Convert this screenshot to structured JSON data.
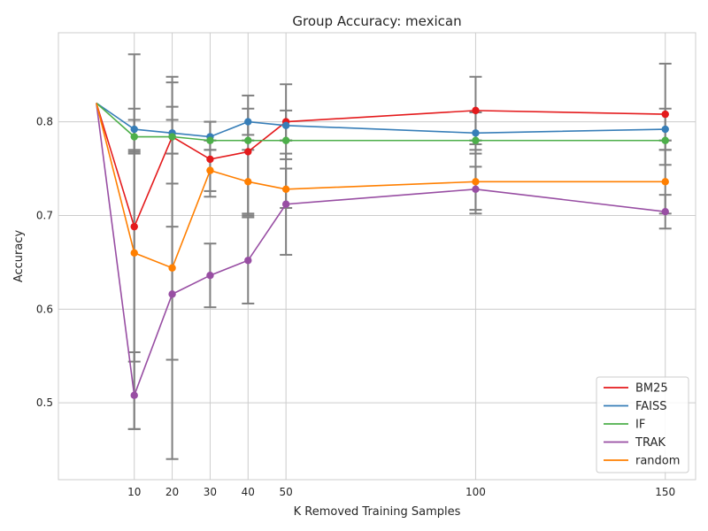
{
  "chart_data": {
    "type": "line",
    "title": "Group Accuracy: mexican",
    "xlabel": "K Removed Training Samples",
    "ylabel": "Accuracy",
    "xlim": [
      -10,
      158
    ],
    "ylim": [
      0.418,
      0.895
    ],
    "xticks": [
      10,
      20,
      30,
      40,
      50,
      100,
      150
    ],
    "yticks": [
      0.5,
      0.6,
      0.7,
      0.8
    ],
    "ytick_labels": [
      "0.5",
      "0.6",
      "0.7",
      "0.8"
    ],
    "grid": true,
    "legend_position": "lower-right",
    "error_bar_color": "#808080",
    "series": [
      {
        "name": "BM25",
        "color": "#e41a1c",
        "x": [
          0,
          10,
          20,
          30,
          40,
          50,
          100,
          150
        ],
        "y": [
          0.82,
          0.688,
          0.784,
          0.76,
          0.768,
          0.8,
          0.812,
          0.808
        ],
        "err": [
          null,
          [
            0.472,
            0.872
          ],
          [
            0.734,
            0.842
          ],
          [
            0.72,
            0.8
          ],
          [
            0.7,
            0.828
          ],
          [
            0.76,
            0.84
          ],
          [
            0.776,
            0.848
          ],
          [
            0.754,
            0.862
          ]
        ]
      },
      {
        "name": "FAISS",
        "color": "#377eb8",
        "x": [
          0,
          10,
          20,
          30,
          40,
          50,
          100,
          150
        ],
        "y": [
          0.82,
          0.792,
          0.788,
          0.784,
          0.8,
          0.796,
          0.788,
          0.792
        ],
        "err": [
          null,
          [
            0.768,
            0.814
          ],
          [
            0.766,
            0.816
          ],
          [
            0.77,
            0.8
          ],
          [
            0.786,
            0.814
          ],
          [
            0.78,
            0.812
          ],
          [
            0.766,
            0.81
          ],
          [
            0.77,
            0.814
          ]
        ]
      },
      {
        "name": "IF",
        "color": "#4daf4a",
        "x": [
          0,
          10,
          20,
          30,
          40,
          50,
          100,
          150
        ],
        "y": [
          0.82,
          0.784,
          0.784,
          0.78,
          0.78,
          0.78,
          0.78,
          0.78
        ],
        "err": [
          null,
          [
            0.766,
            0.802
          ],
          [
            0.766,
            0.802
          ],
          [
            0.78,
            0.78
          ],
          [
            0.78,
            0.78
          ],
          [
            0.78,
            0.78
          ],
          [
            0.78,
            0.78
          ],
          [
            0.78,
            0.78
          ]
        ]
      },
      {
        "name": "TRAK",
        "color": "#984ea3",
        "x": [
          0,
          10,
          20,
          30,
          40,
          50,
          100,
          150
        ],
        "y": [
          0.82,
          0.508,
          0.616,
          0.636,
          0.652,
          0.712,
          0.728,
          0.704
        ],
        "err": [
          null,
          [
            0.472,
            0.554
          ],
          [
            0.44,
            0.848
          ],
          [
            0.602,
            0.67
          ],
          [
            0.606,
            0.698
          ],
          [
            0.658,
            0.766
          ],
          [
            0.702,
            0.752
          ],
          [
            0.686,
            0.722
          ]
        ]
      },
      {
        "name": "random",
        "color": "#ff7f00",
        "x": [
          0,
          10,
          20,
          30,
          40,
          50,
          100,
          150
        ],
        "y": [
          0.82,
          0.66,
          0.644,
          0.748,
          0.736,
          0.728,
          0.736,
          0.736
        ],
        "err": [
          null,
          [
            0.544,
            0.77
          ],
          [
            0.546,
            0.688
          ],
          [
            0.726,
            0.77
          ],
          [
            0.702,
            0.77
          ],
          [
            0.708,
            0.75
          ],
          [
            0.706,
            0.77
          ],
          [
            0.702,
            0.77
          ]
        ]
      }
    ]
  }
}
